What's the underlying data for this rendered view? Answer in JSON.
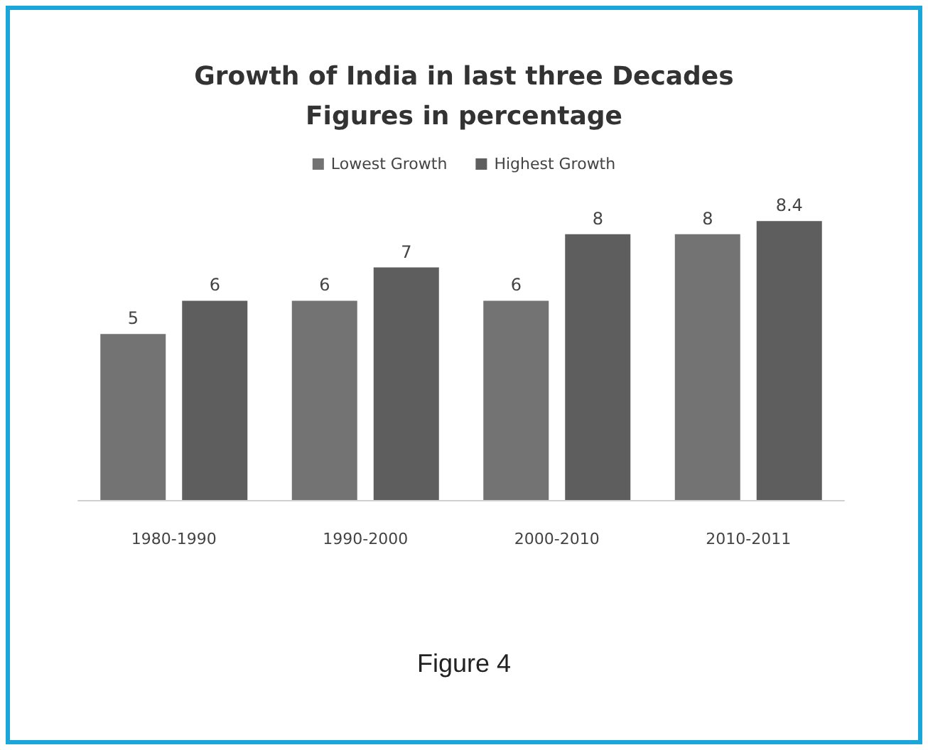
{
  "chart_data": {
    "type": "bar",
    "title": "Growth of India in last three Decades\nFigures in percentage",
    "categories": [
      "1980-1990",
      "1990-2000",
      "2000-2010",
      "2010-2011"
    ],
    "series": [
      {
        "name": "Lowest Growth",
        "color": "#737373",
        "values": [
          5,
          6,
          6,
          8
        ]
      },
      {
        "name": "Highest Growth",
        "color": "#5e5e5e",
        "values": [
          6,
          7,
          8,
          8.4
        ]
      }
    ],
    "data_labels": true,
    "legend": "top",
    "annotations": [
      "Figure 4"
    ]
  }
}
